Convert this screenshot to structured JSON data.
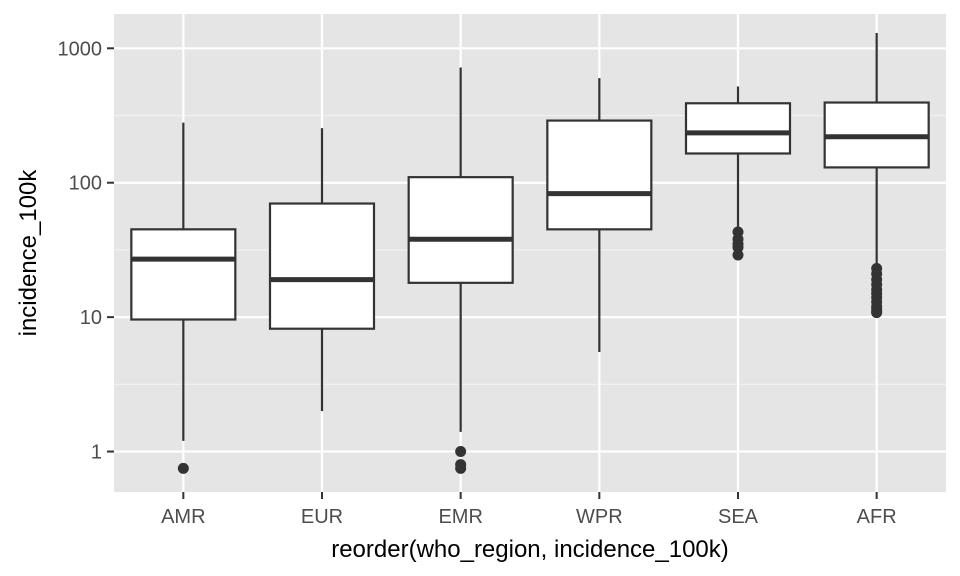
{
  "chart_data": {
    "type": "boxplot",
    "title": "",
    "xlabel": "reorder(who_region, incidence_100k)",
    "ylabel": "incidence_100k",
    "y_scale": "log10",
    "ylim": [
      0.5,
      1800
    ],
    "y_ticks": [
      1,
      10,
      100,
      1000
    ],
    "y_tick_labels": [
      "1",
      "10",
      "100",
      "1000"
    ],
    "grid": true,
    "legend": "none",
    "categories": [
      "AMR",
      "EUR",
      "EMR",
      "WPR",
      "SEA",
      "AFR"
    ],
    "boxes": [
      {
        "region": "AMR",
        "whisker_low": 1.2,
        "q1": 9.6,
        "median": 27,
        "q3": 45,
        "whisker_high": 280,
        "outliers": [
          0.75
        ]
      },
      {
        "region": "EUR",
        "whisker_low": 2.0,
        "q1": 8.2,
        "median": 19,
        "q3": 70,
        "whisker_high": 255,
        "outliers": []
      },
      {
        "region": "EMR",
        "whisker_low": 1.4,
        "q1": 18,
        "median": 38,
        "q3": 110,
        "whisker_high": 720,
        "outliers": [
          1.0,
          0.8,
          0.75
        ]
      },
      {
        "region": "WPR",
        "whisker_low": 5.5,
        "q1": 45,
        "median": 83,
        "q3": 290,
        "whisker_high": 600,
        "outliers": []
      },
      {
        "region": "SEA",
        "whisker_low": 45,
        "q1": 165,
        "median": 235,
        "q3": 390,
        "whisker_high": 520,
        "outliers": [
          43,
          38,
          35,
          33,
          29
        ]
      },
      {
        "region": "AFR",
        "whisker_low": 24,
        "q1": 130,
        "median": 220,
        "q3": 395,
        "whisker_high": 1300,
        "outliers": [
          23,
          21,
          19,
          17.5,
          16,
          15,
          14,
          13,
          12,
          11.5,
          11,
          10.8
        ]
      }
    ]
  },
  "colors": {
    "panel_bg": "#e5e5e5",
    "grid_major": "#ffffff",
    "grid_minor": "#f2f2f2",
    "box_fill": "#ffffff",
    "box_stroke": "#333333",
    "tick_text": "#4d4d4d",
    "axis_title": "#000000"
  }
}
